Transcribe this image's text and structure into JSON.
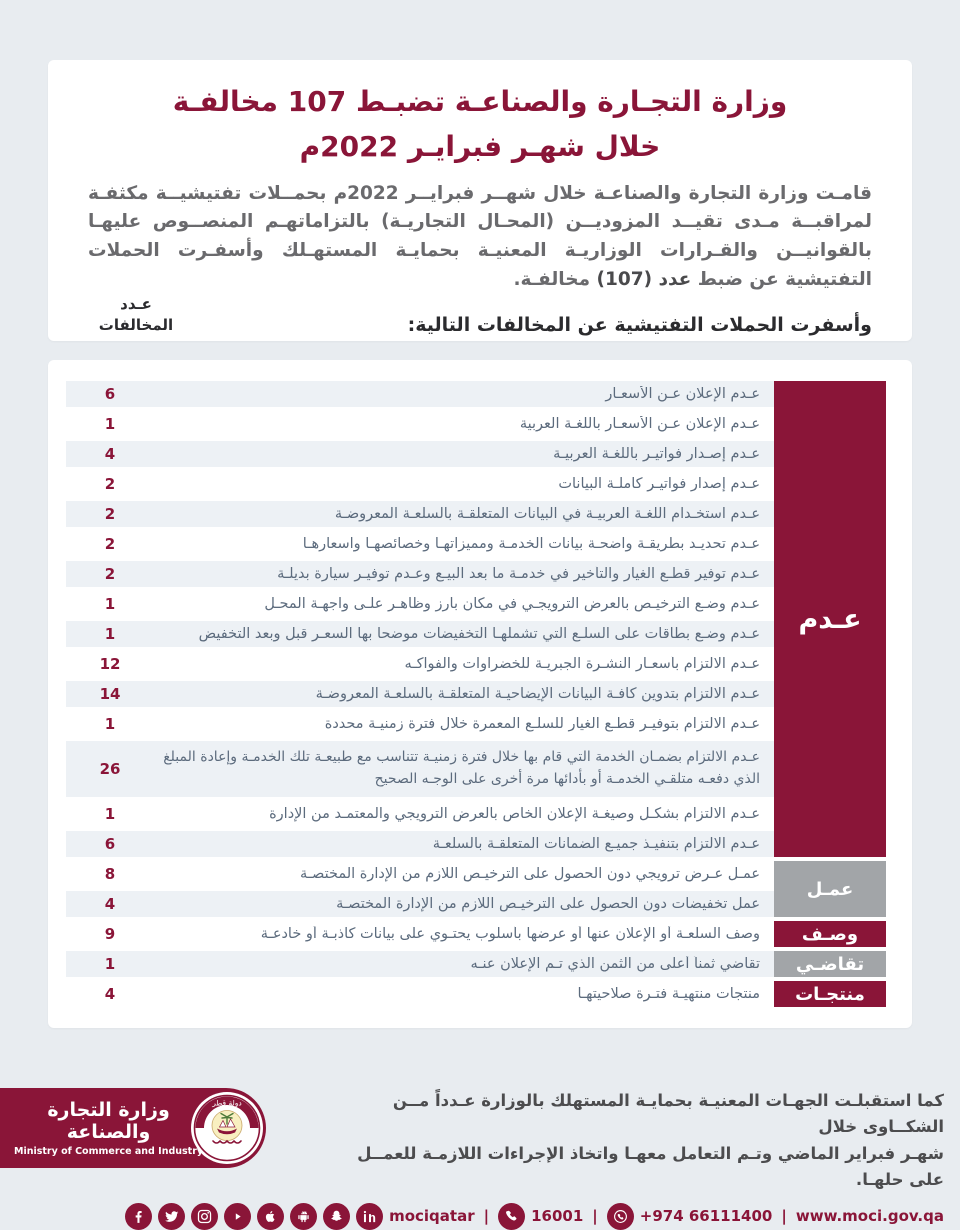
{
  "colors": {
    "maroon": "#8A1538",
    "badge_gray": "#A2A5A8",
    "stripe": "#EDF1F5",
    "page_bg": "#E8ECF0"
  },
  "header": {
    "title_line1": "وزارة التجـارة والصناعـة تضبـط 107 مخالفـة",
    "title_line2": "خلال شهـر فبرايـر 2022م",
    "intro_before": "قامـت وزارة التجارة والصناعـة خلال شهــر فبرايــر 2022م بحمــلات تفتيشيــة مكثفـة لمراقبــة مـدى تقيــد المزوديــن (المحـال التجاريـة) بالتزاماتهـم المنصــوص عليهـا بالقوانيــن والقـرارات الوزاريـة المعنيـة بحمايـة المستهـلك وأسفـرت الحملات التفتيشية عن ضبط ",
    "intro_bold": "عدد (107)",
    "intro_after": " مخالفـة.",
    "count_label_line1": "عـدد",
    "count_label_line2": "المخالفات",
    "results_label": "وأسفرت الحملات التفتيشية عن المخالفات التالية:"
  },
  "table": {
    "sections": [
      {
        "label": "عـدم",
        "color": "maroon",
        "rows": [
          {
            "text": "عـدم الإعلان عـن الأسعـار",
            "value": 6
          },
          {
            "text": "عـدم الإعلان عـن الأسعـار باللغـة العربية",
            "value": 1
          },
          {
            "text": "عـدم إصـدار فواتيـر باللغـة العربيـة",
            "value": 4
          },
          {
            "text": "عـدم إصدار فواتيـر كاملـة البيانات",
            "value": 2
          },
          {
            "text": "عـدم استخـدام اللغـة العربيـة في البيانات المتعلقـة بالسلعـة المعروضـة",
            "value": 2
          },
          {
            "text": "عـدم تحديـد بطريقـة واضحـة بيانات الخدمـة ومميزاتهـا وخصائصهـا واسعارهـا",
            "value": 2
          },
          {
            "text": "عـدم توفير قطـع الغيار والتأخير في خدمـة ما بعد البيـع وعـدم توفيـر سيارة بديلـة",
            "value": 2
          },
          {
            "text": "عـدم وضـع الترخيـص بالعرض الترويجـي في مكان بارز وظاهـر علـى واجهـة المحـل",
            "value": 1
          },
          {
            "text": "عـدم وضـع بطاقات على السلـع التي تشملهـا التخفيضات موضحا بها السعـر قبل وبعد التخفيض",
            "value": 1
          },
          {
            "text": "عـدم الالتزام بأسعـار النشـرة الجبريـة للخضراوات والفواكـه",
            "value": 12
          },
          {
            "text": "عـدم الالتزام بتدوين كافـة البيانات الإيضاحيـة المتعلقـة بالسلعـة المعروضـة",
            "value": 14
          },
          {
            "text": "عـدم الالتزام بتوفيـر قطـع الغيار للسلـع المعمرة خلال فترة زمنيـة محددة",
            "value": 1
          },
          {
            "text": "عـدم الالتزام بضمـان الخدمة التي قام بها خلال فترة زمنيـة تتناسب مع طبيعـة تلك الخدمـة وإعادة المبلغ الذي دفعـه متلقـي الخدمـة أو بأدائها مرة أخرى على الوجـه الصحيح",
            "value": 26
          },
          {
            "text": "عـدم الالتزام بشكـل وصيغـة الإعلان الخاص بالعرض الترويجي والمعتمـد من الإدارة",
            "value": 1
          },
          {
            "text": "عـدم الالتزام بتنفيـذ جميـع الضمانات المتعلقـة بالسلعـة",
            "value": 6
          }
        ]
      },
      {
        "label": "عمـل",
        "color": "gray",
        "rows": [
          {
            "text": "عمـل عـرض ترويجي دون الحصول على الترخيـص اللازم من الإدارة المختصـة",
            "value": 8
          },
          {
            "text": "عمل تخفيضات دون الحصول على الترخيـص اللازم من الإدارة المختصـة",
            "value": 4
          }
        ]
      },
      {
        "label": "وصـف",
        "color": "maroon",
        "rows": [
          {
            "text": "وصف السلعـة أو الإعلان عنها أو عرضها بأسلوب يحتـوي على بيانات كاذبـة أو خادعـة",
            "value": 9
          }
        ]
      },
      {
        "label": "تقاضـي",
        "color": "gray",
        "rows": [
          {
            "text": "تقاضي ثمناً أعلى من الثمن الذي تـم الإعلان عنـه",
            "value": 1
          }
        ]
      },
      {
        "label": "منتجـات",
        "color": "maroon",
        "rows": [
          {
            "text": "منتجات منتهيـة فتـرة صلاحيتهـا",
            "value": 4
          }
        ]
      }
    ]
  },
  "footer": {
    "ministry_ar": "وزارة التجارة والصناعة",
    "ministry_en": "Ministry of Commerce and Industry",
    "note_line1": "كما استقبلـت الجهـات المعنيـة بحمايـة المستهلك بالوزارة عـدداً مــن الشكــاوى خلال",
    "note_line2": "شهـر فبراير الماضي وتـم التعامل معهـا واتخاذ الإجراءات اللازمـة للعمــل على حلهـا.",
    "social_icons": [
      "facebook",
      "twitter",
      "instagram",
      "youtube",
      "apple",
      "android",
      "snapchat",
      "linkedin"
    ],
    "social_handle": "mociqatar",
    "separator": "|",
    "hotline": "16001",
    "whatsapp": "+974 66111400",
    "website": "www.moci.gov.qa"
  }
}
